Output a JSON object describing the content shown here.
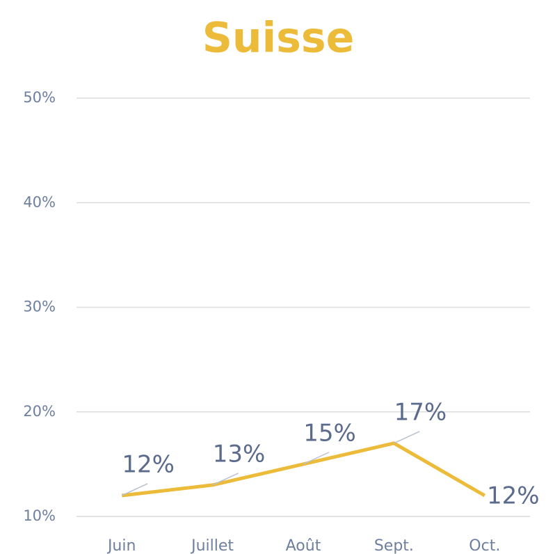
{
  "chart_data": {
    "type": "line",
    "title": "Suisse",
    "categories": [
      "Juin",
      "Juillet",
      "Août",
      "Sept.",
      "Oct."
    ],
    "values": [
      12,
      13,
      15,
      17,
      12
    ],
    "value_labels": [
      "12%",
      "13%",
      "15%",
      "17%",
      "12%"
    ],
    "color": "#ecbb3a",
    "ylim": [
      10,
      50
    ],
    "yticks": [
      {
        "value": 10,
        "label": "10%"
      },
      {
        "value": 20,
        "label": "20%"
      },
      {
        "value": 30,
        "label": "30%"
      },
      {
        "value": 40,
        "label": "40%"
      },
      {
        "value": 50,
        "label": "50%"
      }
    ],
    "grid": true
  }
}
